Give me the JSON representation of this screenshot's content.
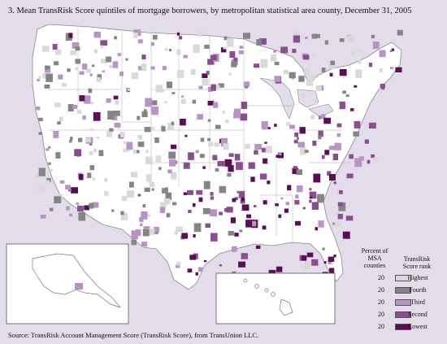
{
  "title": "3.  Mean TransRisk Score quintiles of mortgage borrowers, by metropolitan statistical area county, December 31, 2005",
  "source": "Source: TransRisk Account Management Score (TransRisk Score), from TransUnion LLC.",
  "legend": {
    "col1_header": "Percent of MSA counties",
    "col2_header": "TransRisk Score rank",
    "rows": [
      {
        "percent": "20",
        "label": "Highest",
        "color": "#d9d9d9"
      },
      {
        "percent": "20",
        "label": "Fourth",
        "color": "#858585"
      },
      {
        "percent": "20",
        "label": "Third",
        "color": "#b894c6"
      },
      {
        "percent": "20",
        "label": "Second",
        "color": "#8a4d8f"
      },
      {
        "percent": "20",
        "label": "Lowest",
        "color": "#5a0f55"
      }
    ]
  },
  "colors": {
    "background": "#e3dcea",
    "land": "#ffffff",
    "border": "#888888"
  }
}
